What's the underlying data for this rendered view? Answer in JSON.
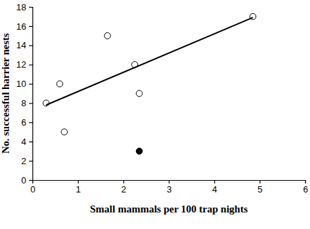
{
  "chart_data": {
    "type": "scatter",
    "x_label": "Small mammals per 100 trap nights",
    "y_label": "No. successful harrier nests",
    "xlim": [
      0,
      6
    ],
    "xticks": [
      0,
      1,
      2,
      3,
      4,
      5,
      6
    ],
    "ylim": [
      0,
      18
    ],
    "yticks": [
      0,
      2,
      4,
      6,
      8,
      10,
      12,
      14,
      16,
      18
    ],
    "grid": false,
    "series": [
      {
        "type": "scatter",
        "marker": "open-circle",
        "color": "#000000",
        "x": [
          0.3,
          0.6,
          0.7,
          1.65,
          2.25,
          2.35,
          4.85
        ],
        "values": [
          8,
          10,
          5,
          15,
          12,
          9,
          17
        ]
      },
      {
        "type": "scatter",
        "marker": "filled-circle",
        "color": "#000000",
        "x": [
          2.35
        ],
        "values": [
          3
        ]
      },
      {
        "type": "line",
        "line_style": "solid",
        "color": "#000000",
        "x": [
          0.3,
          4.85
        ],
        "values": [
          7.8,
          16.9
        ]
      }
    ]
  }
}
